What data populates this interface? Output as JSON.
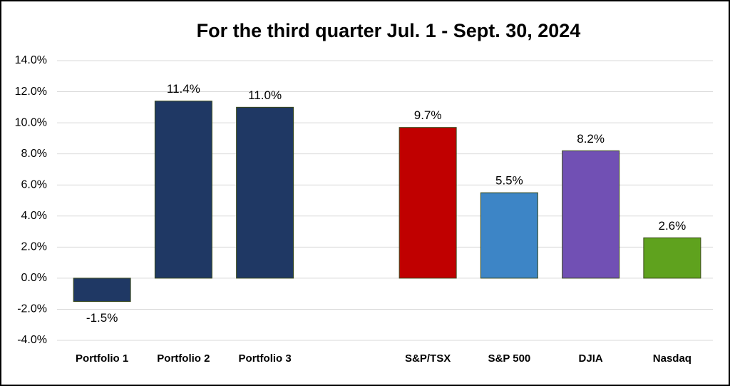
{
  "chart_data": {
    "type": "bar",
    "title": "For the third quarter Jul. 1 - Sept. 30, 2024",
    "categories": [
      "Portfolio 1",
      "Portfolio 2",
      "Portfolio 3",
      null,
      "S&P/TSX",
      "S&P 500",
      "DJIA",
      "Nasdaq"
    ],
    "values": [
      -1.5,
      11.4,
      11.0,
      null,
      9.7,
      5.5,
      8.2,
      2.6
    ],
    "value_labels": [
      "-1.5%",
      "11.4%",
      "11.0%",
      null,
      "9.7%",
      "5.5%",
      "8.2%",
      "2.6%"
    ],
    "colors": [
      "#1f3864",
      "#1f3864",
      "#1f3864",
      null,
      "#c00000",
      "#3d85c6",
      "#7150b4",
      "#5fa21e"
    ],
    "ylim": [
      -4,
      14
    ],
    "yticks": [
      {
        "value": -4,
        "label": "-4.0%"
      },
      {
        "value": -2,
        "label": "-2.0%"
      },
      {
        "value": 0,
        "label": "0.0%"
      },
      {
        "value": 2,
        "label": "2.0%"
      },
      {
        "value": 4,
        "label": "4.0%"
      },
      {
        "value": 6,
        "label": "6.0%"
      },
      {
        "value": 8,
        "label": "8.0%"
      },
      {
        "value": 10,
        "label": "10.0%"
      },
      {
        "value": 12,
        "label": "12.0%"
      },
      {
        "value": 14,
        "label": "14.0%"
      }
    ],
    "grid": true
  }
}
